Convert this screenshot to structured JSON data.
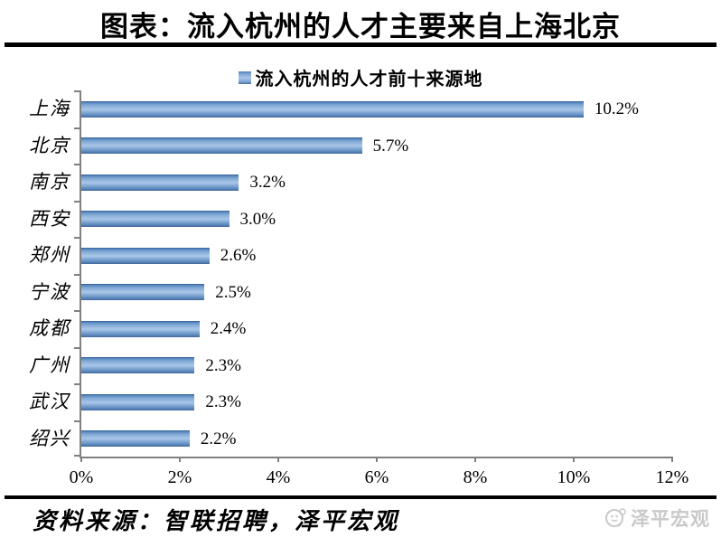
{
  "page": {
    "title": "图表：流入杭州的人才主要来自上海北京",
    "source_note": "资料来源：智联招聘，泽平宏观",
    "watermark_label": "泽平宏观"
  },
  "chart_data": {
    "type": "bar",
    "orientation": "horizontal",
    "title": "流入杭州的人才前十来源地",
    "categories": [
      "上海",
      "北京",
      "南京",
      "西安",
      "郑州",
      "宁波",
      "成都",
      "广州",
      "武汉",
      "绍兴"
    ],
    "values": [
      10.2,
      5.7,
      3.2,
      3.0,
      2.6,
      2.5,
      2.4,
      2.3,
      2.3,
      2.2
    ],
    "value_labels": [
      "10.2%",
      "5.7%",
      "3.2%",
      "3.0%",
      "2.6%",
      "2.5%",
      "2.4%",
      "2.3%",
      "2.3%",
      "2.2%"
    ],
    "xlabel": "",
    "ylabel": "",
    "xlim": [
      0,
      12
    ],
    "x_ticks": [
      "0%",
      "2%",
      "4%",
      "6%",
      "8%",
      "10%",
      "12%"
    ],
    "grid": false,
    "legend_position": "top",
    "bar_color": "#4f81bd",
    "axis_color": "#808080"
  }
}
